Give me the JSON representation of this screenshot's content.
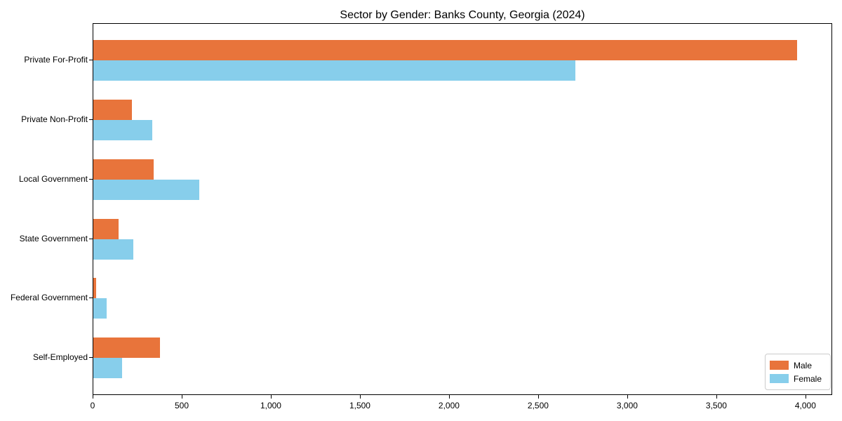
{
  "title": "Sector by Gender: Banks County, Georgia (2024)",
  "colors": {
    "male": "#e8743b",
    "female": "#87ceeb",
    "axis": "#000000",
    "legend_border": "#cccccc",
    "background": "#ffffff"
  },
  "chart_data": {
    "type": "bar",
    "orientation": "horizontal",
    "title": "Sector by Gender: Banks County, Georgia (2024)",
    "xlabel": "",
    "ylabel": "",
    "categories": [
      "Private For-Profit",
      "Private Non-Profit",
      "Local Government",
      "State Government",
      "Federal Government",
      "Self-Employed"
    ],
    "series": [
      {
        "name": "Male",
        "color": "#e8743b",
        "values": [
          3950,
          215,
          340,
          140,
          15,
          375
        ]
      },
      {
        "name": "Female",
        "color": "#87ceeb",
        "values": [
          2705,
          330,
          595,
          225,
          75,
          160
        ]
      }
    ],
    "xlim": [
      0,
      4150
    ],
    "xticks": [
      0,
      500,
      1000,
      1500,
      2000,
      2500,
      3000,
      3500,
      4000
    ],
    "xtick_labels": [
      "0",
      "500",
      "1,000",
      "1,500",
      "2,000",
      "2,500",
      "3,000",
      "3,500",
      "4,000"
    ],
    "grid": false,
    "legend_position": "lower right"
  },
  "legend": {
    "items": [
      {
        "label": "Male"
      },
      {
        "label": "Female"
      }
    ]
  }
}
